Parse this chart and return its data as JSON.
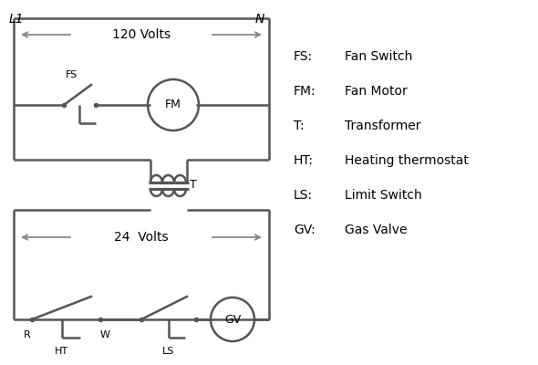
{
  "bg_color": "#ffffff",
  "line_color": "#555555",
  "arrow_color": "#888888",
  "text_color": "#000000",
  "lw": 1.8,
  "fig_width": 5.9,
  "fig_height": 4.0,
  "legend": [
    [
      "FS:",
      "Fan Switch"
    ],
    [
      "FM:",
      " Fan Motor"
    ],
    [
      "T:",
      "      Transformer"
    ],
    [
      "HT:",
      " Heating thermostat"
    ],
    [
      "LS:",
      " Limit Switch"
    ],
    [
      "GV:",
      "  Gas Valve"
    ]
  ]
}
